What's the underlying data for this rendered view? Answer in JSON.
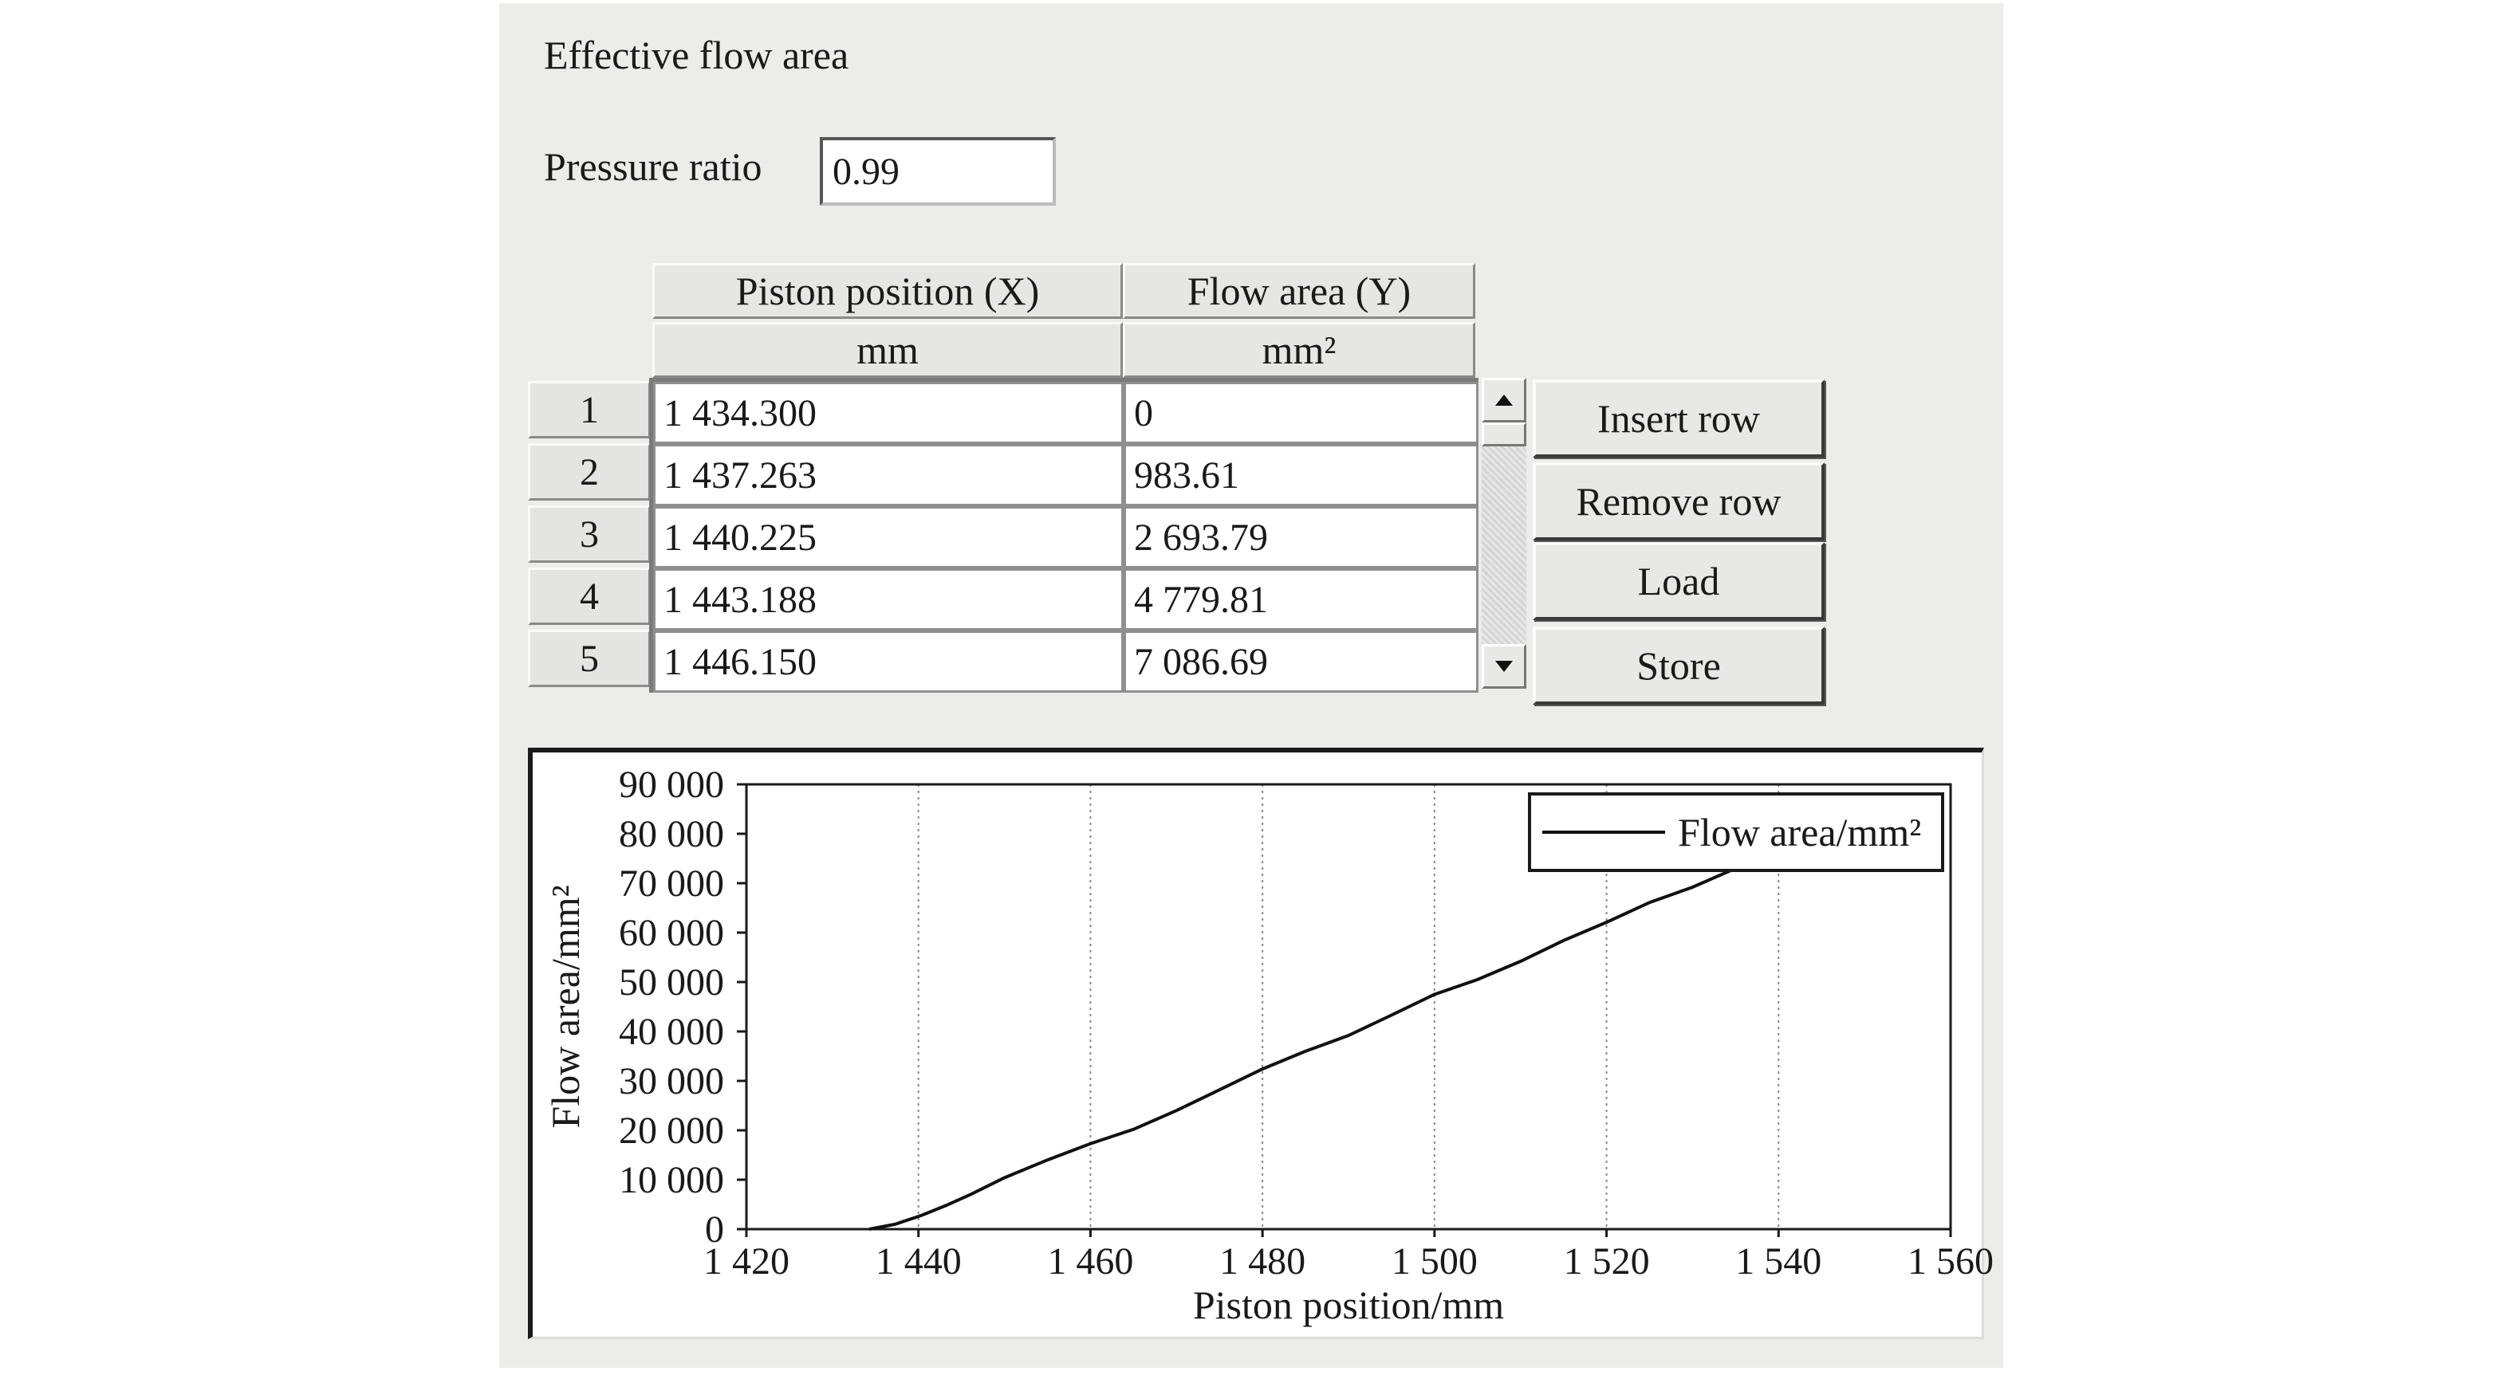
{
  "window": {
    "title": "Effective flow area"
  },
  "pressure_ratio": {
    "label": "Pressure ratio",
    "value": "0.99"
  },
  "table": {
    "columns": [
      {
        "header": "Piston position (X)",
        "unit": "mm"
      },
      {
        "header": "Flow area (Y)",
        "unit": "mm²"
      }
    ],
    "rows": [
      {
        "index": "1",
        "x": "1 434.300",
        "y": "0"
      },
      {
        "index": "2",
        "x": "1 437.263",
        "y": "983.61"
      },
      {
        "index": "3",
        "x": "1 440.225",
        "y": "2 693.79"
      },
      {
        "index": "4",
        "x": "1 443.188",
        "y": "4 779.81"
      },
      {
        "index": "5",
        "x": "1 446.150",
        "y": "7 086.69"
      }
    ],
    "scroll_up_icon": "triangle-up",
    "scroll_down_icon": "triangle-down"
  },
  "buttons": {
    "insert_row": "Insert row",
    "remove_row": "Remove row",
    "load": "Load",
    "store": "Store"
  },
  "chart_data": {
    "type": "line",
    "xlabel": "Piston position/mm",
    "ylabel": "Flow area/mm²",
    "xlim": [
      1420,
      1560
    ],
    "ylim": [
      0,
      90000
    ],
    "x_ticks": [
      1420,
      1440,
      1460,
      1480,
      1500,
      1520,
      1540,
      1560
    ],
    "x_tick_labels": [
      "1 420",
      "1 440",
      "1 460",
      "1 480",
      "1 500",
      "1 520",
      "1 540",
      "1 560"
    ],
    "y_ticks": [
      0,
      10000,
      20000,
      30000,
      40000,
      50000,
      60000,
      70000,
      80000,
      90000
    ],
    "y_tick_labels": [
      "0",
      "10 000",
      "20 000",
      "30 000",
      "40 000",
      "50 000",
      "60 000",
      "70 000",
      "80 000",
      "90 000"
    ],
    "grid": "vertical dotted",
    "legend_position": "top-right",
    "series": [
      {
        "name": "Flow area/mm²",
        "color": "#111111",
        "x": [
          1434.3,
          1437.263,
          1440.225,
          1443.188,
          1446.15,
          1450,
          1455,
          1460,
          1465,
          1470,
          1475,
          1480,
          1485,
          1490,
          1495,
          1500,
          1505,
          1510,
          1515,
          1520,
          1525,
          1530,
          1535
        ],
        "y": [
          0,
          983.61,
          2693.79,
          4779.81,
          7086.69,
          10400,
          14000,
          17300,
          20200,
          24000,
          28200,
          32400,
          36000,
          39200,
          43300,
          47500,
          50500,
          54200,
          58400,
          62100,
          66100,
          69200,
          73000
        ]
      }
    ]
  }
}
